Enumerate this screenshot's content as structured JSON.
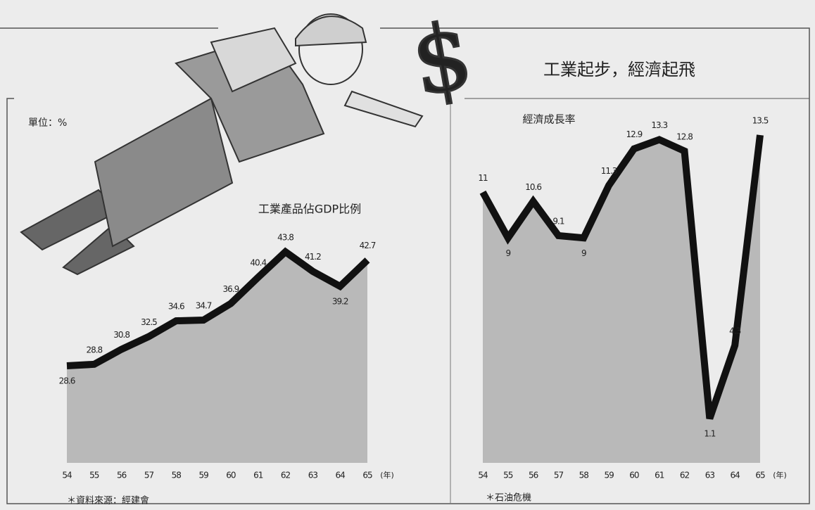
{
  "title": "工業起步，經濟起飛",
  "unit": "單位：%",
  "source": "＊資料來源：經建會",
  "note": "＊石油危機",
  "chart_data": [
    {
      "type": "area",
      "title": "工業產品佔GDP比例",
      "x_unit": "(年)",
      "categories": [
        "54",
        "55",
        "56",
        "57",
        "58",
        "59",
        "60",
        "61",
        "62",
        "63",
        "64",
        "65"
      ],
      "values": [
        28.6,
        28.8,
        30.8,
        32.5,
        34.6,
        34.7,
        36.9,
        40.4,
        43.8,
        41.2,
        39.2,
        42.7
      ],
      "color": "#b9b9b9"
    },
    {
      "type": "area",
      "title": "經濟成長率",
      "x_unit": "(年)",
      "categories": [
        "54",
        "55",
        "56",
        "57",
        "58",
        "59",
        "60",
        "61",
        "62",
        "63",
        "64",
        "65"
      ],
      "values": [
        11.0,
        9.0,
        10.6,
        9.1,
        9.0,
        11.3,
        12.9,
        13.3,
        12.8,
        1.1,
        4.3,
        13.5
      ],
      "color": "#b9b9b9"
    }
  ]
}
